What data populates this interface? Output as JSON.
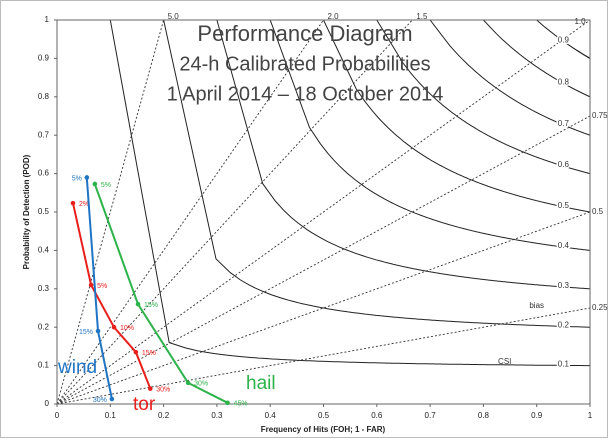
{
  "chart_data": {
    "type": "performance",
    "title": "Performance Diagram",
    "subtitle": "24-h Calibrated Probabilities",
    "period": "1 April 2014 – 18 October 2014",
    "xlabel": "Frequency of Hits (FOH; 1 - FAR)",
    "ylabel": "Probability of Detection (POD)",
    "xlim": [
      0,
      1
    ],
    "ylim": [
      0,
      1
    ],
    "xticks": [
      0,
      0.1,
      0.2,
      0.3,
      0.4,
      0.5,
      0.6,
      0.7,
      0.8,
      0.9,
      1
    ],
    "yticks": [
      0,
      0.1,
      0.2,
      0.3,
      0.4,
      0.5,
      0.6,
      0.7,
      0.8,
      0.9,
      1
    ],
    "csi": [
      0.1,
      0.2,
      0.3,
      0.4,
      0.5,
      0.6,
      0.7,
      0.8,
      0.9
    ],
    "csi_label": "CSI",
    "bias": [
      {
        "value": 5,
        "label": "5.0"
      },
      {
        "value": 2,
        "label": "2.0"
      },
      {
        "value": 1.5,
        "label": "1.5"
      },
      {
        "value": 1,
        "label": "1.0"
      },
      {
        "value": 0.75,
        "label": "0.75"
      },
      {
        "value": 0.5,
        "label": "0.5"
      },
      {
        "value": 0.25,
        "label": "0.25"
      }
    ],
    "bias_label": "bias",
    "series": [
      {
        "name": "tor",
        "color": "#e8201c",
        "x": [
          0.03,
          0.064,
          0.107,
          0.148,
          0.175
        ],
        "values": [
          0.523,
          0.31,
          0.2,
          0.135,
          0.04
        ],
        "thresholds": [
          "2%",
          "5%",
          "10%",
          "15%",
          "30%"
        ]
      },
      {
        "name": "wind",
        "color": "#1f74c4",
        "x": [
          0.056,
          0.077,
          0.103
        ],
        "values": [
          0.59,
          0.19,
          0.013
        ],
        "thresholds": [
          "5%",
          "15%",
          "30%"
        ]
      },
      {
        "name": "hail",
        "color": "#2cb34a",
        "x": [
          0.071,
          0.152,
          0.246,
          0.32
        ],
        "values": [
          0.573,
          0.26,
          0.055,
          0.003
        ],
        "thresholds": [
          "5%",
          "15%",
          "30%",
          "45%"
        ]
      }
    ]
  }
}
